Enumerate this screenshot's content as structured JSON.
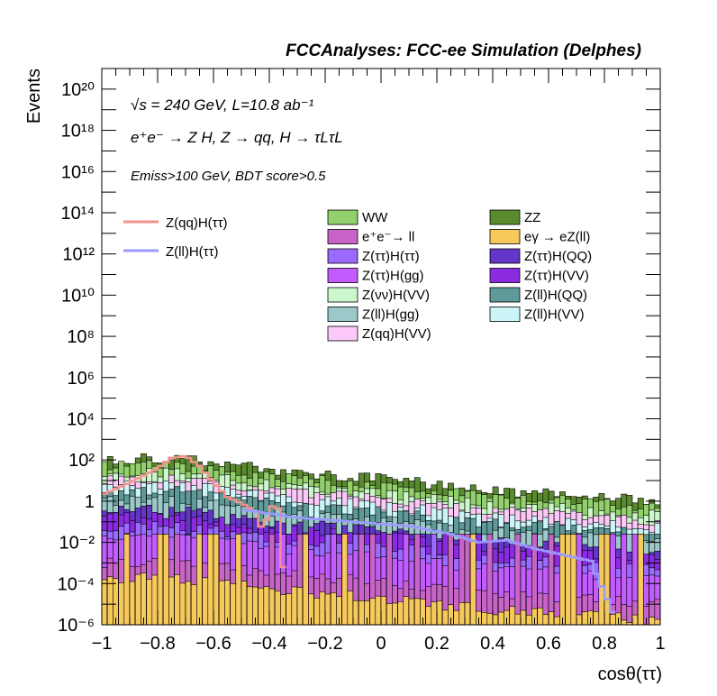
{
  "header": {
    "title": "FCCAnalyses: FCC-ee Simulation (Delphes)"
  },
  "annotations": {
    "line1": "√s = 240 GeV, L=10.8 ab⁻¹",
    "line2": "e⁺e⁻ → Z H, Z → qq, H → τLτL",
    "line3": "Emiss>100 GeV, BDT score>0.5"
  },
  "chart_data": {
    "type": "histogram",
    "xlabel": "cosθ(ττ)",
    "ylabel": "Events",
    "xlim": [
      -1,
      1
    ],
    "ylim": [
      1e-06,
      1e+21
    ],
    "log_y": true,
    "x_ticks": [
      "−1",
      "−0.8",
      "−0.6",
      "−0.4",
      "−0.2",
      "0",
      "0.2",
      "0.4",
      "0.6",
      "0.8",
      "1"
    ],
    "y_ticks": [
      "10⁻⁶",
      "10⁻⁴",
      "10⁻²",
      "1",
      "10²",
      "10⁴",
      "10⁶",
      "10⁸",
      "10¹⁰",
      "10¹²",
      "10¹⁴",
      "10¹⁶",
      "10¹⁸",
      "10²⁰"
    ],
    "n_bins": 100,
    "stack_totals_log10_approx": {
      "x": [
        -1.0,
        -0.8,
        -0.6,
        -0.4,
        -0.2,
        0.0,
        0.2,
        0.4,
        0.6,
        0.8,
        1.0
      ],
      "log10": [
        2.0,
        2.1,
        1.9,
        1.5,
        1.3,
        1.1,
        0.8,
        0.5,
        0.4,
        0.2,
        0.0
      ]
    },
    "legend_stack": [
      {
        "label": "WW",
        "color": "#92d06b"
      },
      {
        "label": "ZZ",
        "color": "#5a8a2e"
      },
      {
        "label": "e⁺e⁻→ ll",
        "color": "#c863c8"
      },
      {
        "label": "eγ → eZ(ll)",
        "color": "#f5c95b"
      },
      {
        "label": "Z(ττ)H(ττ)",
        "color": "#9b6bff"
      },
      {
        "label": "Z(ττ)H(QQ)",
        "color": "#6436c8"
      },
      {
        "label": "Z(ττ)H(gg)",
        "color": "#c25cff"
      },
      {
        "label": "Z(ττ)H(VV)",
        "color": "#8a2be2"
      },
      {
        "label": "Z(νν)H(VV)",
        "color": "#ccf7cc"
      },
      {
        "label": "Z(ll)H(QQ)",
        "color": "#5f9a9a"
      },
      {
        "label": "Z(ll)H(gg)",
        "color": "#9bc8c8"
      },
      {
        "label": "Z(ll)H(VV)",
        "color": "#cbf5f7"
      },
      {
        "label": "Z(qq)H(VV)",
        "color": "#fbc8f7"
      }
    ],
    "signals": [
      {
        "name": "Z(qq)H(ττ)",
        "color": "#f2928c",
        "x": [
          -1.0,
          -0.9,
          -0.8,
          -0.75,
          -0.7,
          -0.65,
          -0.6,
          -0.55,
          -0.5,
          -0.45,
          -0.42,
          -0.4,
          -0.36,
          -0.34
        ],
        "log10": [
          0.3,
          0.9,
          1.6,
          2.1,
          2.2,
          1.7,
          0.9,
          0.2,
          -0.1,
          -0.5,
          -1.6,
          -0.2,
          -0.4,
          -6.0
        ]
      },
      {
        "name": "Z(ll)H(ττ)",
        "color": "#9999ff",
        "x": [
          -0.5,
          -0.3,
          -0.1,
          0.1,
          0.25,
          0.35,
          0.45,
          0.55,
          0.65,
          0.75,
          0.85
        ],
        "log10": [
          -0.4,
          -0.8,
          -1.0,
          -1.2,
          -1.6,
          -2.0,
          -1.9,
          -2.3,
          -2.6,
          -2.9,
          -6.0
        ]
      }
    ]
  }
}
